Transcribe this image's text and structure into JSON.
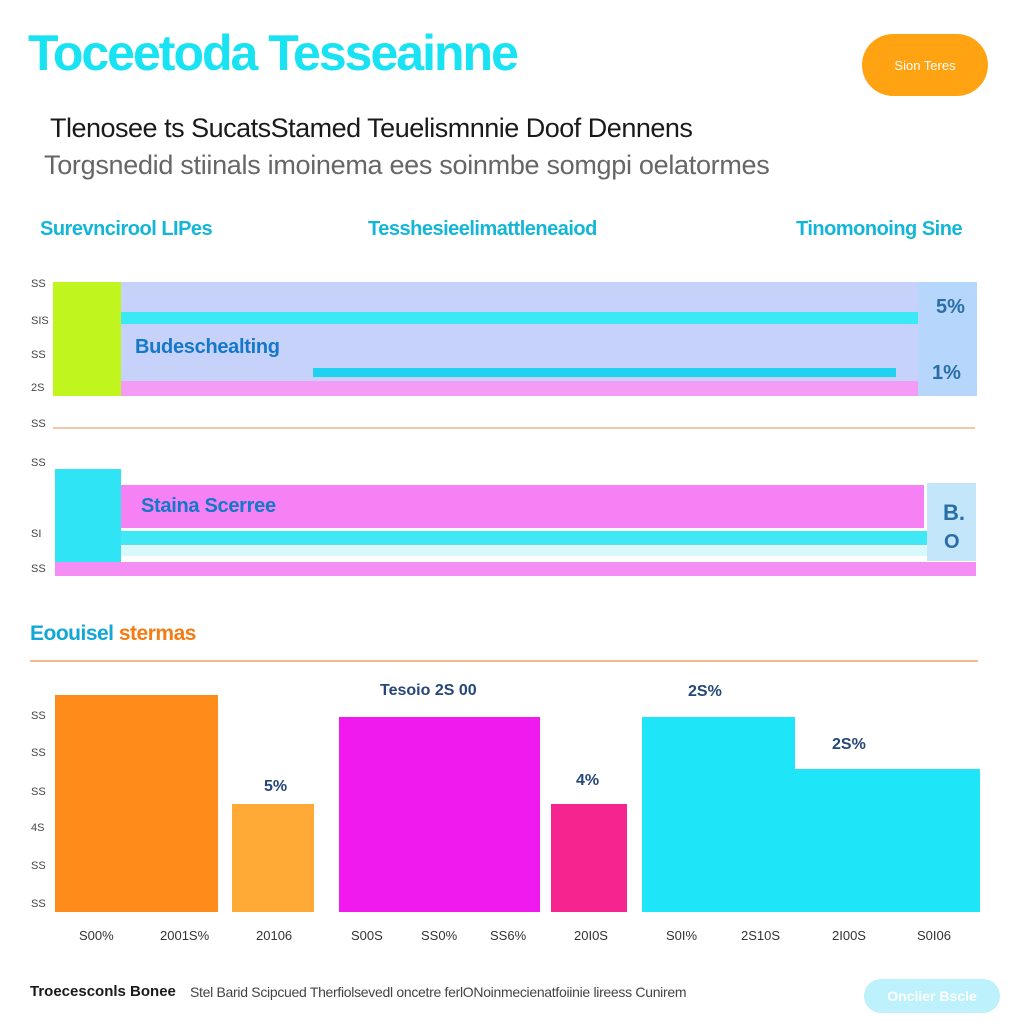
{
  "header": {
    "title": "Toceetoda Tesseainne",
    "button_label": "Sion Teres",
    "subtitle": "Tlenosee ts SucatsStamed Teuelismnnie Doof Dennens",
    "subline": "Torgsnedid stiinals imoinema ees soinmbe somgpi  oelatormes"
  },
  "column_labels": [
    "Surevncirool LIPes",
    "Tesshesieelimattleneaiod",
    "Tinomonoing Sine"
  ],
  "bands": {
    "group1": {
      "y_ticks": [
        "SS",
        "SIS",
        "SS",
        "2S"
      ],
      "label": "Budeschealting",
      "values": [
        "5%",
        "1%"
      ]
    },
    "separator_tick": "SS",
    "group2": {
      "y_ticks": [
        "SS",
        "SI",
        "SS"
      ],
      "label": "Staina Scerree",
      "values": [
        "B.",
        "O"
      ]
    }
  },
  "section2": {
    "title_a": "Eoouisel",
    "title_b": "stermas"
  },
  "chart_data": {
    "type": "bar",
    "y_ticks": [
      "SS",
      "SS",
      "SS",
      "4S",
      "SS",
      "SS"
    ],
    "bars": [
      {
        "value": 100,
        "label": "",
        "color": "#ff8c1a"
      },
      {
        "value": 50,
        "label": "5%",
        "color": "#ffa936"
      },
      {
        "value": 90,
        "label": "Tesoio 2S 00",
        "color": "#f01aee"
      },
      {
        "value": 50,
        "label": "4%",
        "color": "#f5248f"
      },
      {
        "value": 90,
        "label": "2S%",
        "color": "#1ee6f8"
      },
      {
        "value": 66,
        "label": "2S%",
        "color": "#1ee6f8"
      }
    ],
    "x_ticks": [
      "S00%",
      "2001S%",
      "20106",
      "S00S",
      "SS0%",
      "SS6%",
      "20I0S",
      "S0I%",
      "2S10S",
      "2I00S",
      "S0I06"
    ]
  },
  "footer": {
    "left_label": "Troecesconls Bonee",
    "note": "Stel Barid Scipcued Therfiolsevedl oncetre ferlONoinmecienatfoiinie lireess Cunirem",
    "button_label": "Onclier Bscle"
  }
}
